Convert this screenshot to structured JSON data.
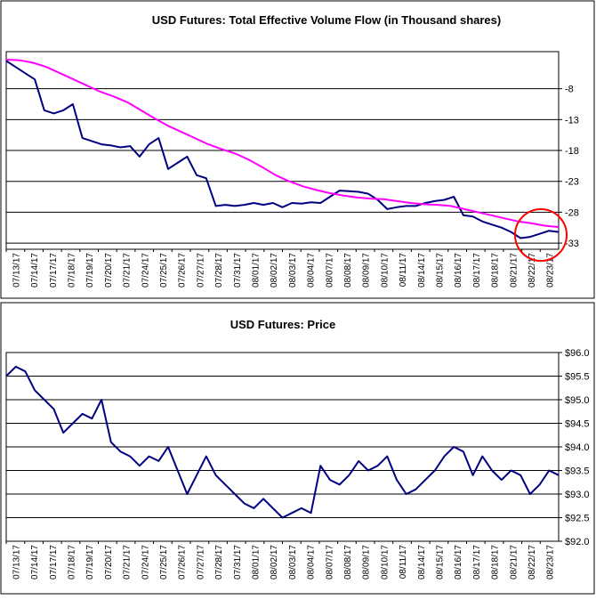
{
  "chart_data": [
    {
      "type": "line",
      "title": "USD Futures: Total Effective Volume Flow (in Thousand shares)",
      "y_axis_side": "right",
      "ylim": [
        -34,
        -2
      ],
      "y_ticks": [
        -8,
        -13,
        -18,
        -23,
        -28,
        -33
      ],
      "grid": "horizontal",
      "colors": {
        "flow": "#000080",
        "average": "#ff00ff",
        "annotation": "#ff0000"
      },
      "x_tick_labels": [
        "07/13/17",
        "07/14/17",
        "07/17/17",
        "07/18/17",
        "07/19/17",
        "07/20/17",
        "07/21/17",
        "07/24/17",
        "07/25/17",
        "07/26/17",
        "07/27/17",
        "07/28/17",
        "07/31/17",
        "08/01/17",
        "08/02/17",
        "08/03/17",
        "08/04/17",
        "08/07/17",
        "08/08/17",
        "08/09/17",
        "08/10/17",
        "08/11/17",
        "08/14/17",
        "08/15/17",
        "08/16/17",
        "08/17/17",
        "08/18/17",
        "08/21/17",
        "08/22/17",
        "08/23/17"
      ],
      "series": [
        {
          "values": [
            -3.5,
            -4.5,
            -5.5,
            -6.5,
            -11.5,
            -12,
            -11.5,
            -10.5,
            -16,
            -16.5,
            -17,
            -17.2,
            -17.5,
            -17.3,
            -19,
            -17,
            -16,
            -21,
            -20,
            -19,
            -22,
            -22.5,
            -27,
            -26.8,
            -27,
            -26.8,
            -26.5,
            -26.8,
            -26.5,
            -27.2,
            -26.5,
            -26.6,
            -26.4,
            -26.5,
            -25.5,
            -24.5,
            -24.6,
            -24.7,
            -25,
            -26,
            -27.5,
            -27.2,
            -27,
            -27,
            -26.5,
            -26.2,
            -26,
            -25.5,
            -28.5,
            -28.7,
            -29.5,
            -30,
            -30.5,
            -31.2,
            -32.2,
            -32,
            -31.5,
            -31,
            -31.2
          ]
        },
        {
          "values": [
            -3.3,
            -3.4,
            -3.8,
            -4.5,
            -5.5,
            -6.5,
            -7.5,
            -8.5,
            -9.3,
            -10.2,
            -11.5,
            -12.8,
            -14,
            -15,
            -16,
            -17,
            -17.8,
            -18.5,
            -19.5,
            -20.7,
            -22,
            -23,
            -23.8,
            -24.4,
            -24.9,
            -25.3,
            -25.6,
            -25.8,
            -25.9,
            -26.2,
            -26.5,
            -26.7,
            -26.8,
            -27,
            -27.5,
            -28,
            -28.5,
            -29,
            -29.5,
            -29.8,
            -30.2,
            -30.4
          ]
        }
      ],
      "annotation": "circle"
    },
    {
      "type": "line",
      "title": "USD Futures: Price",
      "y_axis_side": "right",
      "ylim": [
        92.0,
        96.0
      ],
      "y_tick_labels": [
        "$96.0",
        "$95.5",
        "$95.0",
        "$94.5",
        "$94.0",
        "$93.5",
        "$93.0",
        "$92.5",
        "$92.0"
      ],
      "y_ticks": [
        96.0,
        95.5,
        95.0,
        94.5,
        94.0,
        93.5,
        93.0,
        92.5,
        92.0
      ],
      "grid": "horizontal",
      "colors": {
        "price": "#000080"
      },
      "x_tick_labels": [
        "07/13/17",
        "07/14/17",
        "07/17/17",
        "07/18/17",
        "07/19/17",
        "07/20/17",
        "07/21/17",
        "07/24/17",
        "07/25/17",
        "07/26/17",
        "07/27/17",
        "07/28/17",
        "07/31/17",
        "08/01/17",
        "08/02/17",
        "08/03/17",
        "08/04/17",
        "08/07/17",
        "08/08/17",
        "08/09/17",
        "08/10/17",
        "08/11/17",
        "08/14/17",
        "08/15/17",
        "08/16/17",
        "08/17/17",
        "08/18/17",
        "08/21/17",
        "08/22/17",
        "08/23/17"
      ],
      "series": [
        {
          "values": [
            95.5,
            95.7,
            95.6,
            95.2,
            95.0,
            94.8,
            94.3,
            94.5,
            94.7,
            94.6,
            95.0,
            94.1,
            93.9,
            93.8,
            93.6,
            93.8,
            93.7,
            94.0,
            93.5,
            93.0,
            93.4,
            93.8,
            93.4,
            93.2,
            93.0,
            92.8,
            92.7,
            92.9,
            92.7,
            92.5,
            92.6,
            92.7,
            92.6,
            93.6,
            93.3,
            93.2,
            93.4,
            93.7,
            93.5,
            93.6,
            93.8,
            93.3,
            93.0,
            93.1,
            93.3,
            93.5,
            93.8,
            94.0,
            93.9,
            93.4,
            93.8,
            93.5,
            93.3,
            93.5,
            93.4,
            93.0,
            93.2,
            93.5,
            93.4
          ]
        }
      ]
    }
  ]
}
